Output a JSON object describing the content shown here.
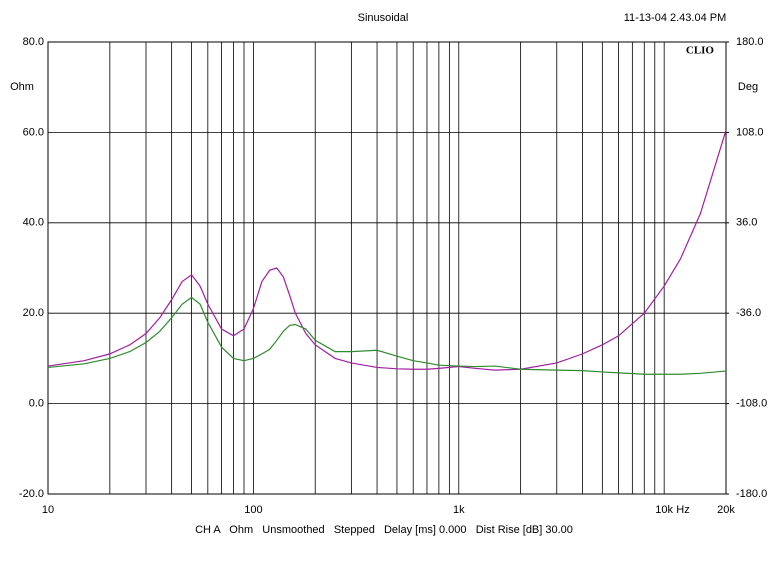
{
  "chart_data": {
    "type": "line",
    "title": "Sinusoidal",
    "timestamp": "11-13-04 2.43.04 PM",
    "brand": "CLIO",
    "y_label": "Ohm",
    "y2_label": "Deg",
    "x_label": "Hz",
    "footer": "CH A   Ohm   Unsmoothed   Stepped   Delay [ms] 0.000   Dist Rise [dB] 30.00",
    "x_scale": "log",
    "grid": true,
    "xlim": [
      10,
      20000
    ],
    "xticks": [
      10,
      100,
      {
        "value": 1000,
        "label": "1k"
      },
      {
        "value": 10000,
        "label": "10k"
      },
      {
        "value": 20000,
        "label": "20k"
      }
    ],
    "x_minor_ticks": [
      20,
      30,
      40,
      50,
      60,
      70,
      80,
      90,
      200,
      300,
      400,
      500,
      600,
      700,
      800,
      900,
      2000,
      3000,
      4000,
      5000,
      6000,
      7000,
      8000,
      9000
    ],
    "ylim": [
      -20,
      80
    ],
    "yticks": [
      {
        "value": -20,
        "label": "-20.0"
      },
      {
        "value": 0,
        "label": "0.0"
      },
      {
        "value": 20,
        "label": "20.0"
      },
      {
        "value": 40,
        "label": "40.0"
      },
      {
        "value": 60,
        "label": "60.0"
      },
      {
        "value": 80,
        "label": "80.0"
      }
    ],
    "y2lim": [
      -180,
      180
    ],
    "y2ticks": [
      {
        "value": -180,
        "label": "-180.0"
      },
      {
        "value": -108,
        "label": "-108.0"
      },
      {
        "value": -36,
        "label": "-36.0"
      },
      {
        "value": 36,
        "label": "36.0"
      },
      {
        "value": 108,
        "label": "108.0"
      },
      {
        "value": 180,
        "label": "180.0"
      }
    ],
    "x": [
      10,
      15,
      20,
      25,
      30,
      35,
      40,
      45,
      50,
      55,
      60,
      70,
      80,
      90,
      100,
      110,
      120,
      130,
      140,
      150,
      160,
      180,
      200,
      250,
      300,
      400,
      500,
      600,
      700,
      800,
      1000,
      1200,
      1500,
      2000,
      3000,
      4000,
      5000,
      6000,
      8000,
      10000,
      12000,
      15000,
      20000
    ],
    "series": [
      {
        "color": "#a020a0",
        "values": [
          8.3,
          9.5,
          11,
          13,
          15.5,
          19,
          23,
          27,
          28.5,
          26,
          22,
          16.5,
          15,
          16.5,
          21,
          27,
          29.5,
          30,
          28,
          24,
          20,
          15.5,
          13,
          10,
          9,
          8,
          7.7,
          7.6,
          7.6,
          7.8,
          8.2,
          7.8,
          7.4,
          7.6,
          9,
          11,
          13,
          15,
          20,
          26,
          32,
          42,
          60.5
        ]
      },
      {
        "color": "#2e8b2e",
        "values": [
          8,
          8.8,
          10,
          11.5,
          13.5,
          16,
          19,
          22,
          23.5,
          22,
          18,
          12.5,
          10,
          9.5,
          10,
          11,
          12,
          14,
          16,
          17.3,
          17.5,
          16.5,
          14,
          11.5,
          11.5,
          11.8,
          10.5,
          9.5,
          9,
          8.5,
          8.3,
          8.2,
          8.3,
          7.6,
          7.4,
          7.3,
          7.0,
          6.8,
          6.5,
          6.5,
          6.5,
          6.7,
          7.2
        ]
      }
    ]
  }
}
